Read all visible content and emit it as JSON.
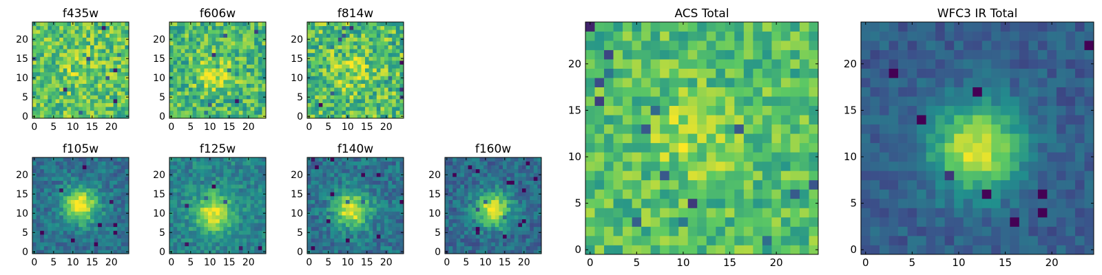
{
  "figure": {
    "colormap": "viridis",
    "colormap_stops": [
      "#440154",
      "#3b528b",
      "#21908d",
      "#5dc963",
      "#fde725"
    ]
  },
  "chart_data": [
    {
      "type": "heatmap",
      "title": "f435w",
      "grid_size": 25,
      "noise": 0.22,
      "peak": 0.08,
      "base": 0.72,
      "sigma": 3.5,
      "center": [
        12,
        12
      ],
      "xticks": [
        "0",
        "5",
        "10",
        "15",
        "20"
      ],
      "yticks": [
        "0",
        "5",
        "10",
        "15",
        "20"
      ],
      "xlim": [
        0,
        25
      ],
      "ylim": [
        0,
        25
      ]
    },
    {
      "type": "heatmap",
      "title": "f606w",
      "grid_size": 25,
      "noise": 0.22,
      "peak": 0.18,
      "base": 0.68,
      "sigma": 3.5,
      "center": [
        11,
        11
      ],
      "xticks": [
        "0",
        "5",
        "10",
        "15",
        "20"
      ],
      "yticks": [
        "0",
        "5",
        "10",
        "15",
        "20"
      ],
      "xlim": [
        0,
        25
      ],
      "ylim": [
        0,
        25
      ]
    },
    {
      "type": "heatmap",
      "title": "f814w",
      "grid_size": 25,
      "noise": 0.24,
      "peak": 0.14,
      "base": 0.7,
      "sigma": 3.5,
      "center": [
        11,
        11
      ],
      "xticks": [
        "0",
        "5",
        "10",
        "15",
        "20"
      ],
      "yticks": [
        "0",
        "5",
        "10",
        "15",
        "20"
      ],
      "xlim": [
        0,
        25
      ],
      "ylim": [
        0,
        25
      ]
    },
    {
      "type": "heatmap",
      "title": "f105w",
      "grid_size": 25,
      "noise": 0.13,
      "peak": 0.62,
      "base": 0.38,
      "sigma": 3.2,
      "center": [
        12,
        12
      ],
      "xticks": [
        "0",
        "5",
        "10",
        "15",
        "20"
      ],
      "yticks": [
        "0",
        "5",
        "10",
        "15",
        "20"
      ],
      "xlim": [
        0,
        25
      ],
      "ylim": [
        0,
        25
      ]
    },
    {
      "type": "heatmap",
      "title": "f125w",
      "grid_size": 25,
      "noise": 0.13,
      "peak": 0.55,
      "base": 0.45,
      "sigma": 3.4,
      "center": [
        11,
        10
      ],
      "xticks": [
        "0",
        "5",
        "10",
        "15",
        "20"
      ],
      "yticks": [
        "0",
        "5",
        "10",
        "15",
        "20"
      ],
      "xlim": [
        0,
        25
      ],
      "ylim": [
        0,
        25
      ]
    },
    {
      "type": "heatmap",
      "title": "f140w",
      "grid_size": 25,
      "noise": 0.14,
      "peak": 0.6,
      "base": 0.38,
      "sigma": 3.3,
      "center": [
        11,
        11
      ],
      "xticks": [
        "0",
        "5",
        "10",
        "15",
        "20"
      ],
      "yticks": [
        "0",
        "5",
        "10",
        "15",
        "20"
      ],
      "xlim": [
        0,
        25
      ],
      "ylim": [
        0,
        25
      ]
    },
    {
      "type": "heatmap",
      "title": "f160w",
      "grid_size": 25,
      "noise": 0.13,
      "peak": 0.62,
      "base": 0.35,
      "sigma": 3.2,
      "center": [
        12,
        11
      ],
      "xticks": [
        "0",
        "5",
        "10",
        "15",
        "20"
      ],
      "yticks": [
        "0",
        "5",
        "10",
        "15",
        "20"
      ],
      "xlim": [
        0,
        25
      ],
      "ylim": [
        0,
        25
      ]
    },
    {
      "type": "heatmap",
      "title": "ACS Total",
      "grid_size": 25,
      "noise": 0.18,
      "peak": 0.14,
      "base": 0.7,
      "sigma": 3.6,
      "center": [
        11,
        12
      ],
      "xticks": [
        "0",
        "5",
        "10",
        "15",
        "20"
      ],
      "yticks": [
        "0",
        "5",
        "10",
        "15",
        "20"
      ],
      "xlim": [
        0,
        25
      ],
      "ylim": [
        0,
        25
      ]
    },
    {
      "type": "heatmap",
      "title": "WFC3 IR Total",
      "grid_size": 25,
      "noise": 0.09,
      "peak": 0.65,
      "base": 0.3,
      "sigma": 3.4,
      "center": [
        12,
        11
      ],
      "xticks": [
        "0",
        "5",
        "10",
        "15",
        "20"
      ],
      "yticks": [
        "0",
        "5",
        "10",
        "15",
        "20"
      ],
      "xlim": [
        0,
        25
      ],
      "ylim": [
        0,
        25
      ]
    }
  ]
}
